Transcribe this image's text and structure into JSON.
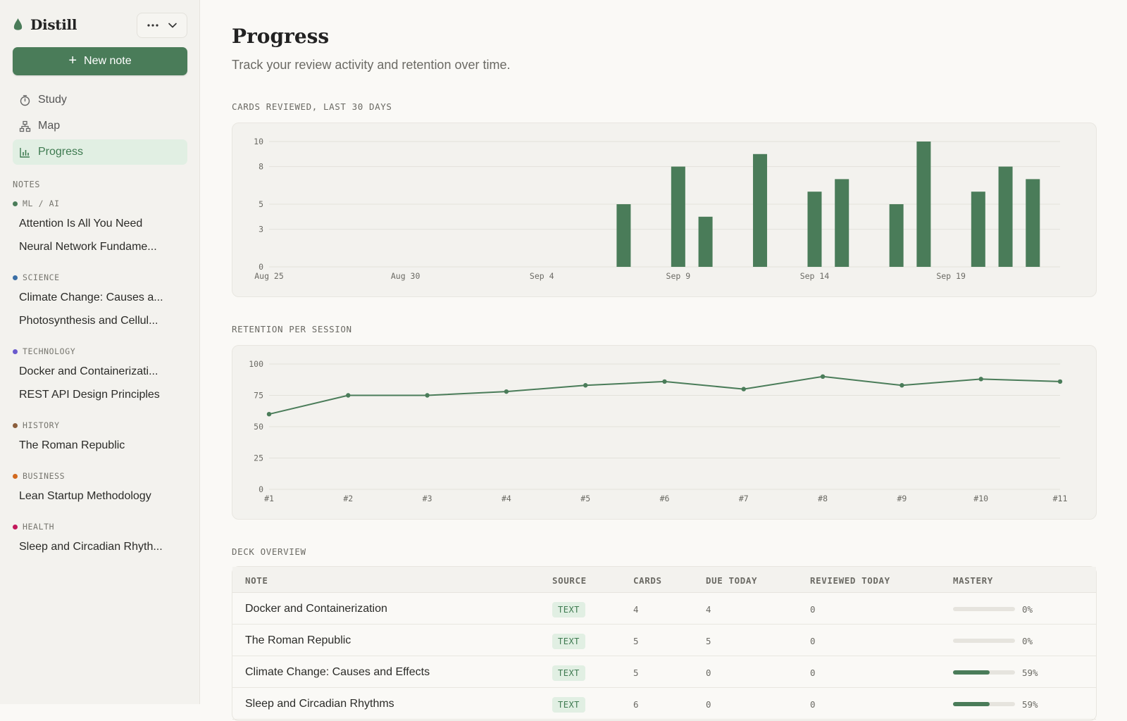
{
  "colors": {
    "accent": "#4a7c59",
    "accent_soft": "#e1efe3",
    "sidebar_bg": "#f3f2ee",
    "page_bg": "#faf9f6"
  },
  "sidebar": {
    "brand": "Distill",
    "menu_icons": [
      "more-icon",
      "chevron-down-icon"
    ],
    "new_note_label": "New note",
    "nav": [
      {
        "label": "Study",
        "icon": "timer-icon",
        "active": false
      },
      {
        "label": "Map",
        "icon": "map-icon",
        "active": false
      },
      {
        "label": "Progress",
        "icon": "bar-chart-icon",
        "active": true
      }
    ],
    "notes_label": "NOTES",
    "groups": [
      {
        "label": "ML / AI",
        "color": "#4a7c59",
        "notes": [
          "Attention Is All You Need",
          "Neural Network Fundame..."
        ]
      },
      {
        "label": "SCIENCE",
        "color": "#3a6ea5",
        "notes": [
          "Climate Change: Causes a...",
          "Photosynthesis and Cellul..."
        ]
      },
      {
        "label": "TECHNOLOGY",
        "color": "#6a5acd",
        "notes": [
          "Docker and Containerizati...",
          "REST API Design Principles"
        ]
      },
      {
        "label": "HISTORY",
        "color": "#8b5e3c",
        "notes": [
          "The Roman Republic"
        ]
      },
      {
        "label": "BUSINESS",
        "color": "#d2691e",
        "notes": [
          "Lean Startup Methodology"
        ]
      },
      {
        "label": "HEALTH",
        "color": "#c2185b",
        "notes": [
          "Sleep and Circadian Rhyth..."
        ]
      }
    ]
  },
  "main": {
    "title": "Progress",
    "subtitle": "Track your review activity and retention over time.",
    "cards_label": "CARDS REVIEWED, LAST 30 DAYS",
    "retention_label": "RETENTION PER SESSION",
    "deck_label": "DECK OVERVIEW",
    "table": {
      "headers": [
        "NOTE",
        "SOURCE",
        "CARDS",
        "DUE TODAY",
        "REVIEWED TODAY",
        "MASTERY"
      ],
      "rows": [
        {
          "note": "Docker and Containerization",
          "source": "TEXT",
          "cards": "4",
          "due": "4",
          "reviewed": "0",
          "mastery": 0,
          "mastery_label": "0%"
        },
        {
          "note": "The Roman Republic",
          "source": "TEXT",
          "cards": "5",
          "due": "5",
          "reviewed": "0",
          "mastery": 0,
          "mastery_label": "0%"
        },
        {
          "note": "Climate Change: Causes and Effects",
          "source": "TEXT",
          "cards": "5",
          "due": "0",
          "reviewed": "0",
          "mastery": 59,
          "mastery_label": "59%"
        },
        {
          "note": "Sleep and Circadian Rhythms",
          "source": "TEXT",
          "cards": "6",
          "due": "0",
          "reviewed": "0",
          "mastery": 59,
          "mastery_label": "59%"
        }
      ]
    }
  },
  "chart_data": [
    {
      "type": "bar",
      "title": "CARDS REVIEWED, LAST 30 DAYS",
      "categories": [
        "Aug 25",
        "Aug 26",
        "Aug 27",
        "Aug 28",
        "Aug 29",
        "Aug 30",
        "Aug 31",
        "Sep 1",
        "Sep 2",
        "Sep 3",
        "Sep 4",
        "Sep 5",
        "Sep 6",
        "Sep 7",
        "Sep 8",
        "Sep 9",
        "Sep 10",
        "Sep 11",
        "Sep 12",
        "Sep 13",
        "Sep 14",
        "Sep 15",
        "Sep 16",
        "Sep 17",
        "Sep 18",
        "Sep 19",
        "Sep 20",
        "Sep 21",
        "Sep 22",
        "Sep 23"
      ],
      "values": [
        0,
        0,
        0,
        0,
        0,
        0,
        0,
        0,
        0,
        0,
        0,
        0,
        0,
        5,
        0,
        8,
        4,
        0,
        9,
        0,
        6,
        7,
        0,
        5,
        10,
        0,
        6,
        8,
        7,
        0
      ],
      "x_tick_labels": [
        "Aug 25",
        "Aug 30",
        "Sep 4",
        "Sep 9",
        "Sep 14",
        "Sep 19"
      ],
      "y_ticks": [
        "0",
        "3",
        "5",
        "8",
        "10"
      ],
      "ylim": [
        0,
        10
      ],
      "grid": true,
      "color": "#4a7c59"
    },
    {
      "type": "line",
      "title": "RETENTION PER SESSION",
      "categories": [
        "#1",
        "#2",
        "#3",
        "#4",
        "#5",
        "#6",
        "#7",
        "#8",
        "#9",
        "#10",
        "#11"
      ],
      "values": [
        60,
        75,
        75,
        78,
        83,
        86,
        80,
        90,
        83,
        88,
        86
      ],
      "y_ticks": [
        "0",
        "25",
        "50",
        "75",
        "100"
      ],
      "ylim": [
        0,
        100
      ],
      "grid": true,
      "color": "#4a7c59"
    }
  ]
}
